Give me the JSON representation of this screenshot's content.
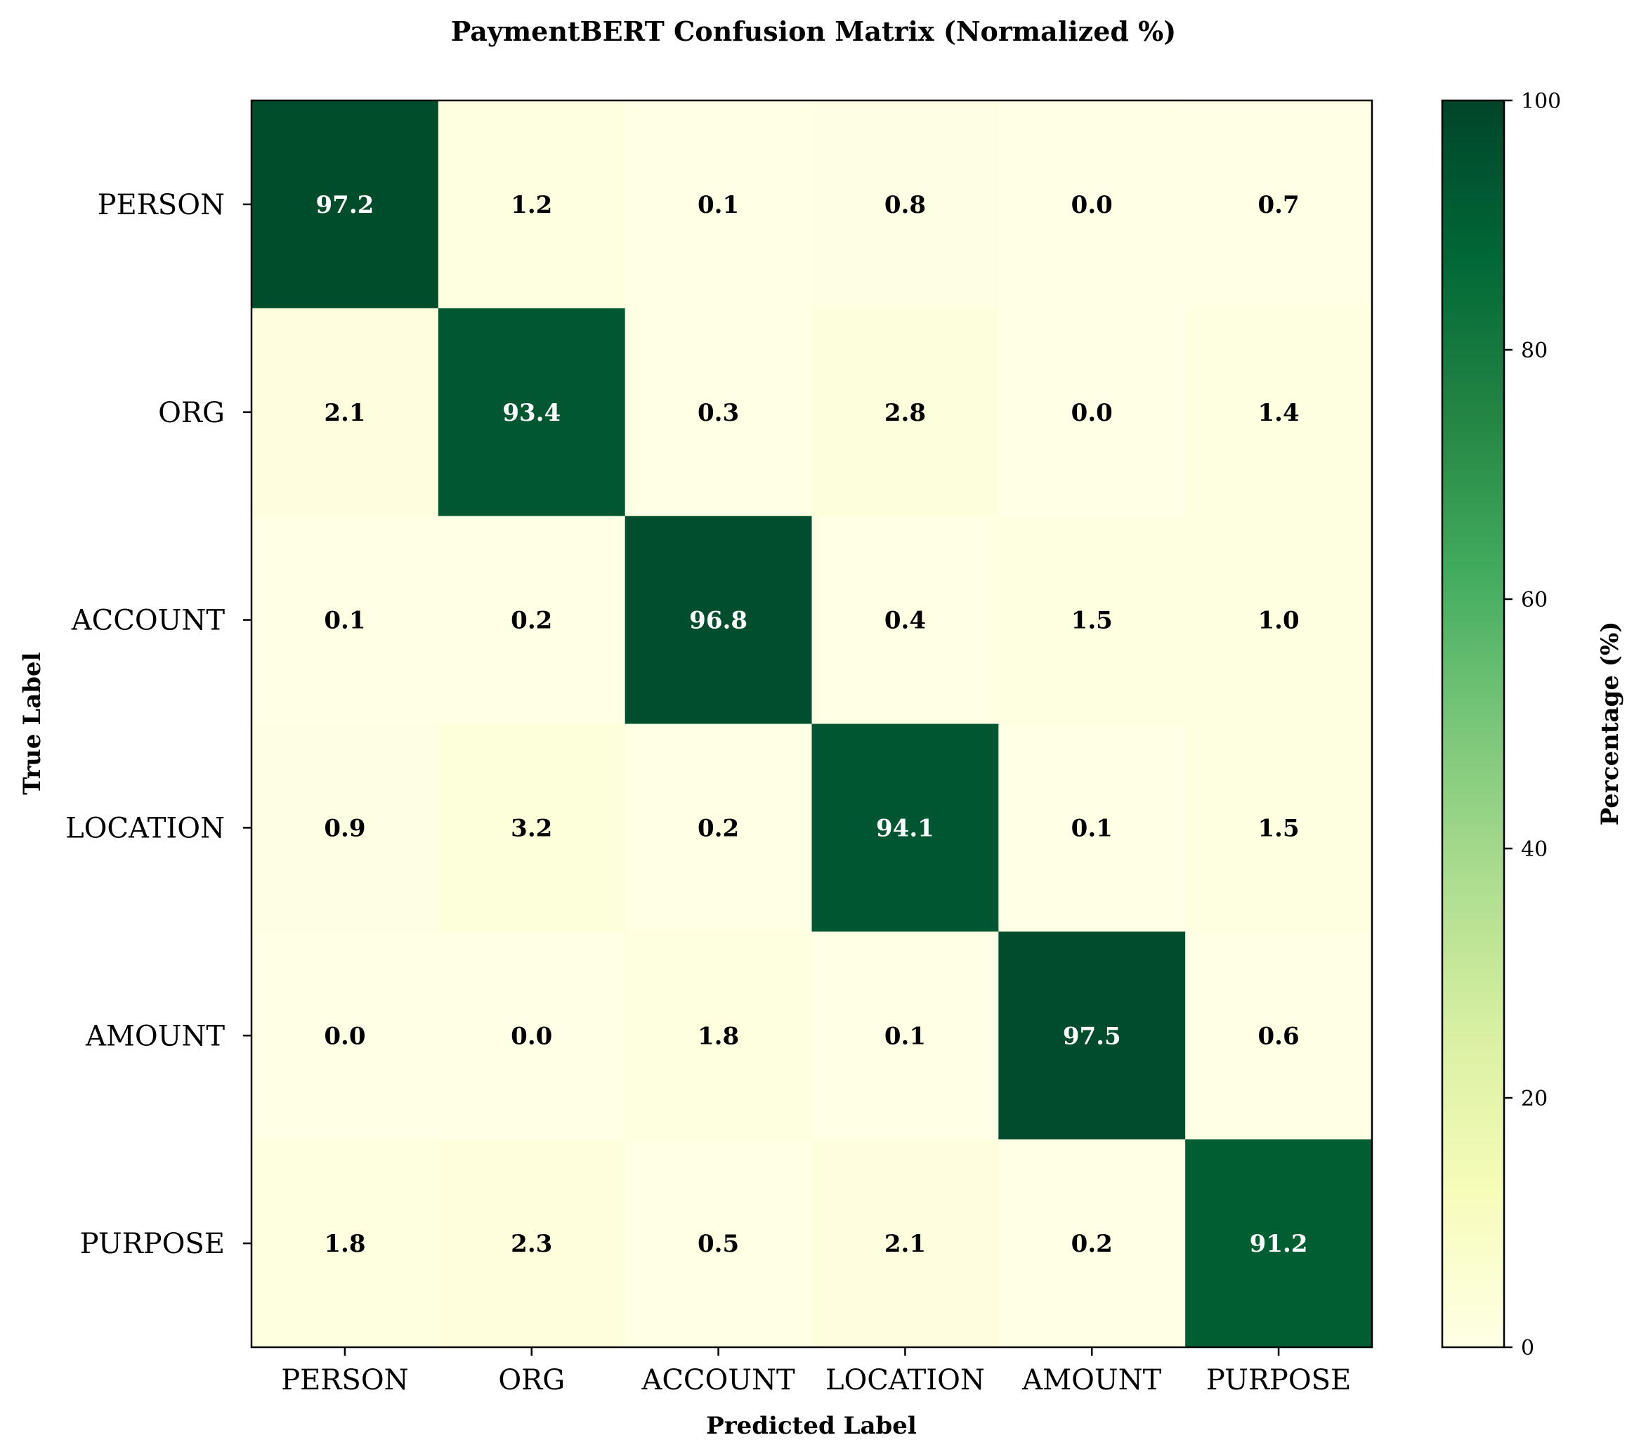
{
  "chart_data": {
    "type": "heatmap",
    "title": "PaymentBERT Confusion Matrix (Normalized %)",
    "xlabel": "Predicted Label",
    "ylabel": "True Label",
    "x_categories": [
      "PERSON",
      "ORG",
      "ACCOUNT",
      "LOCATION",
      "AMOUNT",
      "PURPOSE"
    ],
    "y_categories": [
      "PERSON",
      "ORG",
      "ACCOUNT",
      "LOCATION",
      "AMOUNT",
      "PURPOSE"
    ],
    "values": [
      [
        97.2,
        1.2,
        0.1,
        0.8,
        0.0,
        0.7
      ],
      [
        2.1,
        93.4,
        0.3,
        2.8,
        0.0,
        1.4
      ],
      [
        0.1,
        0.2,
        96.8,
        0.4,
        1.5,
        1.0
      ],
      [
        0.9,
        3.2,
        0.2,
        94.1,
        0.1,
        1.5
      ],
      [
        0.0,
        0.0,
        1.8,
        0.1,
        97.5,
        0.6
      ],
      [
        1.8,
        2.3,
        0.5,
        2.1,
        0.2,
        91.2
      ]
    ],
    "colormap": "YlGn",
    "colorbar": {
      "label": "Percentage (%)",
      "range": [
        0,
        100
      ],
      "ticks": [
        0,
        20,
        40,
        60,
        80,
        100
      ]
    },
    "value_format": "0.1f",
    "text_colors": {
      "light": "#ffffff",
      "dark": "#000000"
    }
  }
}
